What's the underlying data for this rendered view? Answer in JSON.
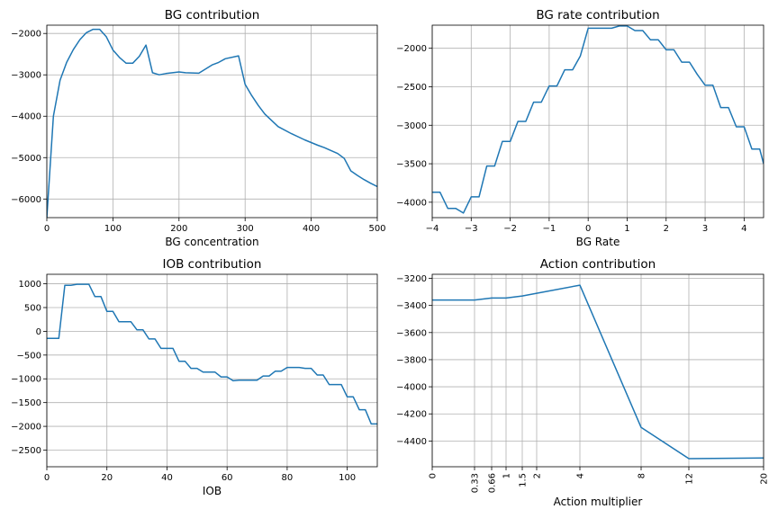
{
  "figure": {
    "background": "#ffffff",
    "line_color": "#1f77b4"
  },
  "chart_data": [
    {
      "type": "line",
      "title": "BG contribution",
      "xlabel": "BG concentration",
      "ylabel": "",
      "xlim": [
        0,
        500
      ],
      "ylim": [
        -6450,
        -1800
      ],
      "grid": true,
      "xticks": [
        0,
        100,
        200,
        300,
        400,
        500
      ],
      "xticklabels": [
        "0",
        "100",
        "200",
        "300",
        "400",
        "500"
      ],
      "yticks": [
        -6000,
        -5000,
        -4000,
        -3000,
        -2000
      ],
      "yticklabels": [
        "−6000",
        "−5000",
        "−4000",
        "−3000",
        "−2000"
      ],
      "series": [
        {
          "x": [
            0,
            10,
            20,
            30,
            40,
            50,
            60,
            70,
            80,
            90,
            100,
            110,
            120,
            130,
            140,
            150,
            160,
            170,
            180,
            200,
            210,
            230,
            250,
            260,
            270,
            290,
            300,
            310,
            320,
            330,
            350,
            370,
            390,
            410,
            420,
            430,
            440,
            450,
            460,
            470,
            480,
            490,
            500
          ],
          "y": [
            -6450,
            -4000,
            -3130,
            -2700,
            -2390,
            -2150,
            -1980,
            -1900,
            -1900,
            -2080,
            -2400,
            -2580,
            -2720,
            -2720,
            -2550,
            -2280,
            -2950,
            -3000,
            -2970,
            -2930,
            -2950,
            -2960,
            -2760,
            -2700,
            -2610,
            -2540,
            -3230,
            -3500,
            -3740,
            -3950,
            -4250,
            -4420,
            -4570,
            -4700,
            -4760,
            -4830,
            -4900,
            -5020,
            -5320,
            -5430,
            -5530,
            -5620,
            -5700
          ]
        }
      ]
    },
    {
      "type": "line",
      "title": "BG rate contribution",
      "xlabel": "BG Rate",
      "ylabel": "",
      "xlim": [
        -4,
        4.5
      ],
      "ylim": [
        -4200,
        -1700
      ],
      "grid": true,
      "xticks": [
        -4,
        -3,
        -2,
        -1,
        0,
        1,
        2,
        3,
        4
      ],
      "xticklabels": [
        "−4",
        "−3",
        "−2",
        "−1",
        "0",
        "1",
        "2",
        "3",
        "4"
      ],
      "yticks": [
        -4000,
        -3500,
        -3000,
        -2500,
        -2000
      ],
      "yticklabels": [
        "−4000",
        "−3500",
        "−3000",
        "−2500",
        "−2000"
      ],
      "series": [
        {
          "x": [
            -4.0,
            -3.8,
            -3.6,
            -3.4,
            -3.2,
            -3.0,
            -2.8,
            -2.6,
            -2.4,
            -2.2,
            -2.0,
            -1.8,
            -1.6,
            -1.4,
            -1.2,
            -1.0,
            -0.8,
            -0.6,
            -0.4,
            -0.2,
            0.0,
            0.2,
            0.4,
            0.6,
            0.8,
            1.0,
            1.2,
            1.4,
            1.6,
            1.8,
            2.0,
            2.2,
            2.4,
            2.6,
            2.8,
            3.0,
            3.2,
            3.4,
            3.6,
            3.8,
            4.0,
            4.2,
            4.4,
            4.5
          ],
          "y": [
            -3870,
            -3870,
            -4080,
            -4080,
            -4140,
            -3930,
            -3930,
            -3530,
            -3530,
            -3210,
            -3210,
            -2950,
            -2950,
            -2700,
            -2700,
            -2490,
            -2490,
            -2280,
            -2280,
            -2100,
            -1740,
            -1740,
            -1740,
            -1740,
            -1710,
            -1710,
            -1770,
            -1770,
            -1890,
            -1890,
            -2020,
            -2020,
            -2180,
            -2180,
            -2340,
            -2480,
            -2480,
            -2770,
            -2770,
            -3020,
            -3020,
            -3310,
            -3310,
            -3500
          ]
        }
      ]
    },
    {
      "type": "line",
      "title": "IOB contribution",
      "xlabel": "IOB",
      "ylabel": "",
      "xlim": [
        0,
        110
      ],
      "ylim": [
        -2850,
        1200
      ],
      "grid": true,
      "xticks": [
        0,
        20,
        40,
        60,
        80,
        100
      ],
      "xticklabels": [
        "0",
        "20",
        "40",
        "60",
        "80",
        "100"
      ],
      "yticks": [
        -2500,
        -2000,
        -1500,
        -1000,
        -500,
        0,
        500,
        1000
      ],
      "yticklabels": [
        "−2500",
        "−2000",
        "−1500",
        "−1000",
        "−500",
        "0",
        "500",
        "1000"
      ],
      "series": [
        {
          "x": [
            0,
            4,
            6,
            8,
            10,
            12,
            14,
            16,
            18,
            20,
            22,
            24,
            26,
            28,
            30,
            32,
            34,
            36,
            38,
            40,
            42,
            44,
            46,
            48,
            50,
            52,
            54,
            56,
            58,
            60,
            62,
            64,
            66,
            68,
            70,
            72,
            74,
            76,
            78,
            80,
            82,
            84,
            86,
            88,
            90,
            92,
            94,
            96,
            98,
            100,
            102,
            104,
            106,
            108,
            110
          ],
          "y": [
            -150,
            -150,
            970,
            970,
            990,
            990,
            990,
            730,
            730,
            420,
            420,
            200,
            200,
            200,
            30,
            30,
            -160,
            -160,
            -360,
            -360,
            -360,
            -630,
            -630,
            -780,
            -780,
            -860,
            -860,
            -860,
            -960,
            -960,
            -1040,
            -1030,
            -1030,
            -1030,
            -1030,
            -940,
            -940,
            -840,
            -840,
            -760,
            -760,
            -760,
            -780,
            -780,
            -920,
            -920,
            -1120,
            -1120,
            -1120,
            -1380,
            -1380,
            -1650,
            -1650,
            -1950,
            -1950
          ]
        }
      ]
    },
    {
      "type": "line",
      "title": "Action contribution",
      "xlabel": "Action multiplier",
      "ylabel": "",
      "xlim": [
        0,
        20
      ],
      "ylim": [
        -4590,
        -3170
      ],
      "grid": true,
      "x_spacing": "non-uniform categorical ticks, labels rotated 90°",
      "xticks": [
        0,
        0.33,
        0.66,
        1,
        1.5,
        2,
        4,
        8,
        12,
        20
      ],
      "xticklabels": [
        "0",
        "0.33",
        "0.66",
        "1",
        "1.5",
        "2",
        "4",
        "8",
        "12",
        "20"
      ],
      "yticks": [
        -4400,
        -4200,
        -4000,
        -3800,
        -3600,
        -3400,
        -3200
      ],
      "yticklabels": [
        "−4400",
        "−4200",
        "−4000",
        "−3800",
        "−3600",
        "−3400",
        "−3200"
      ],
      "series": [
        {
          "x": [
            0,
            0.33,
            0.66,
            1,
            1.5,
            2,
            4,
            8,
            12,
            20
          ],
          "y": [
            -3360,
            -3360,
            -3345,
            -3345,
            -3330,
            -3310,
            -3250,
            -4300,
            -4530,
            -4525
          ]
        }
      ]
    }
  ]
}
